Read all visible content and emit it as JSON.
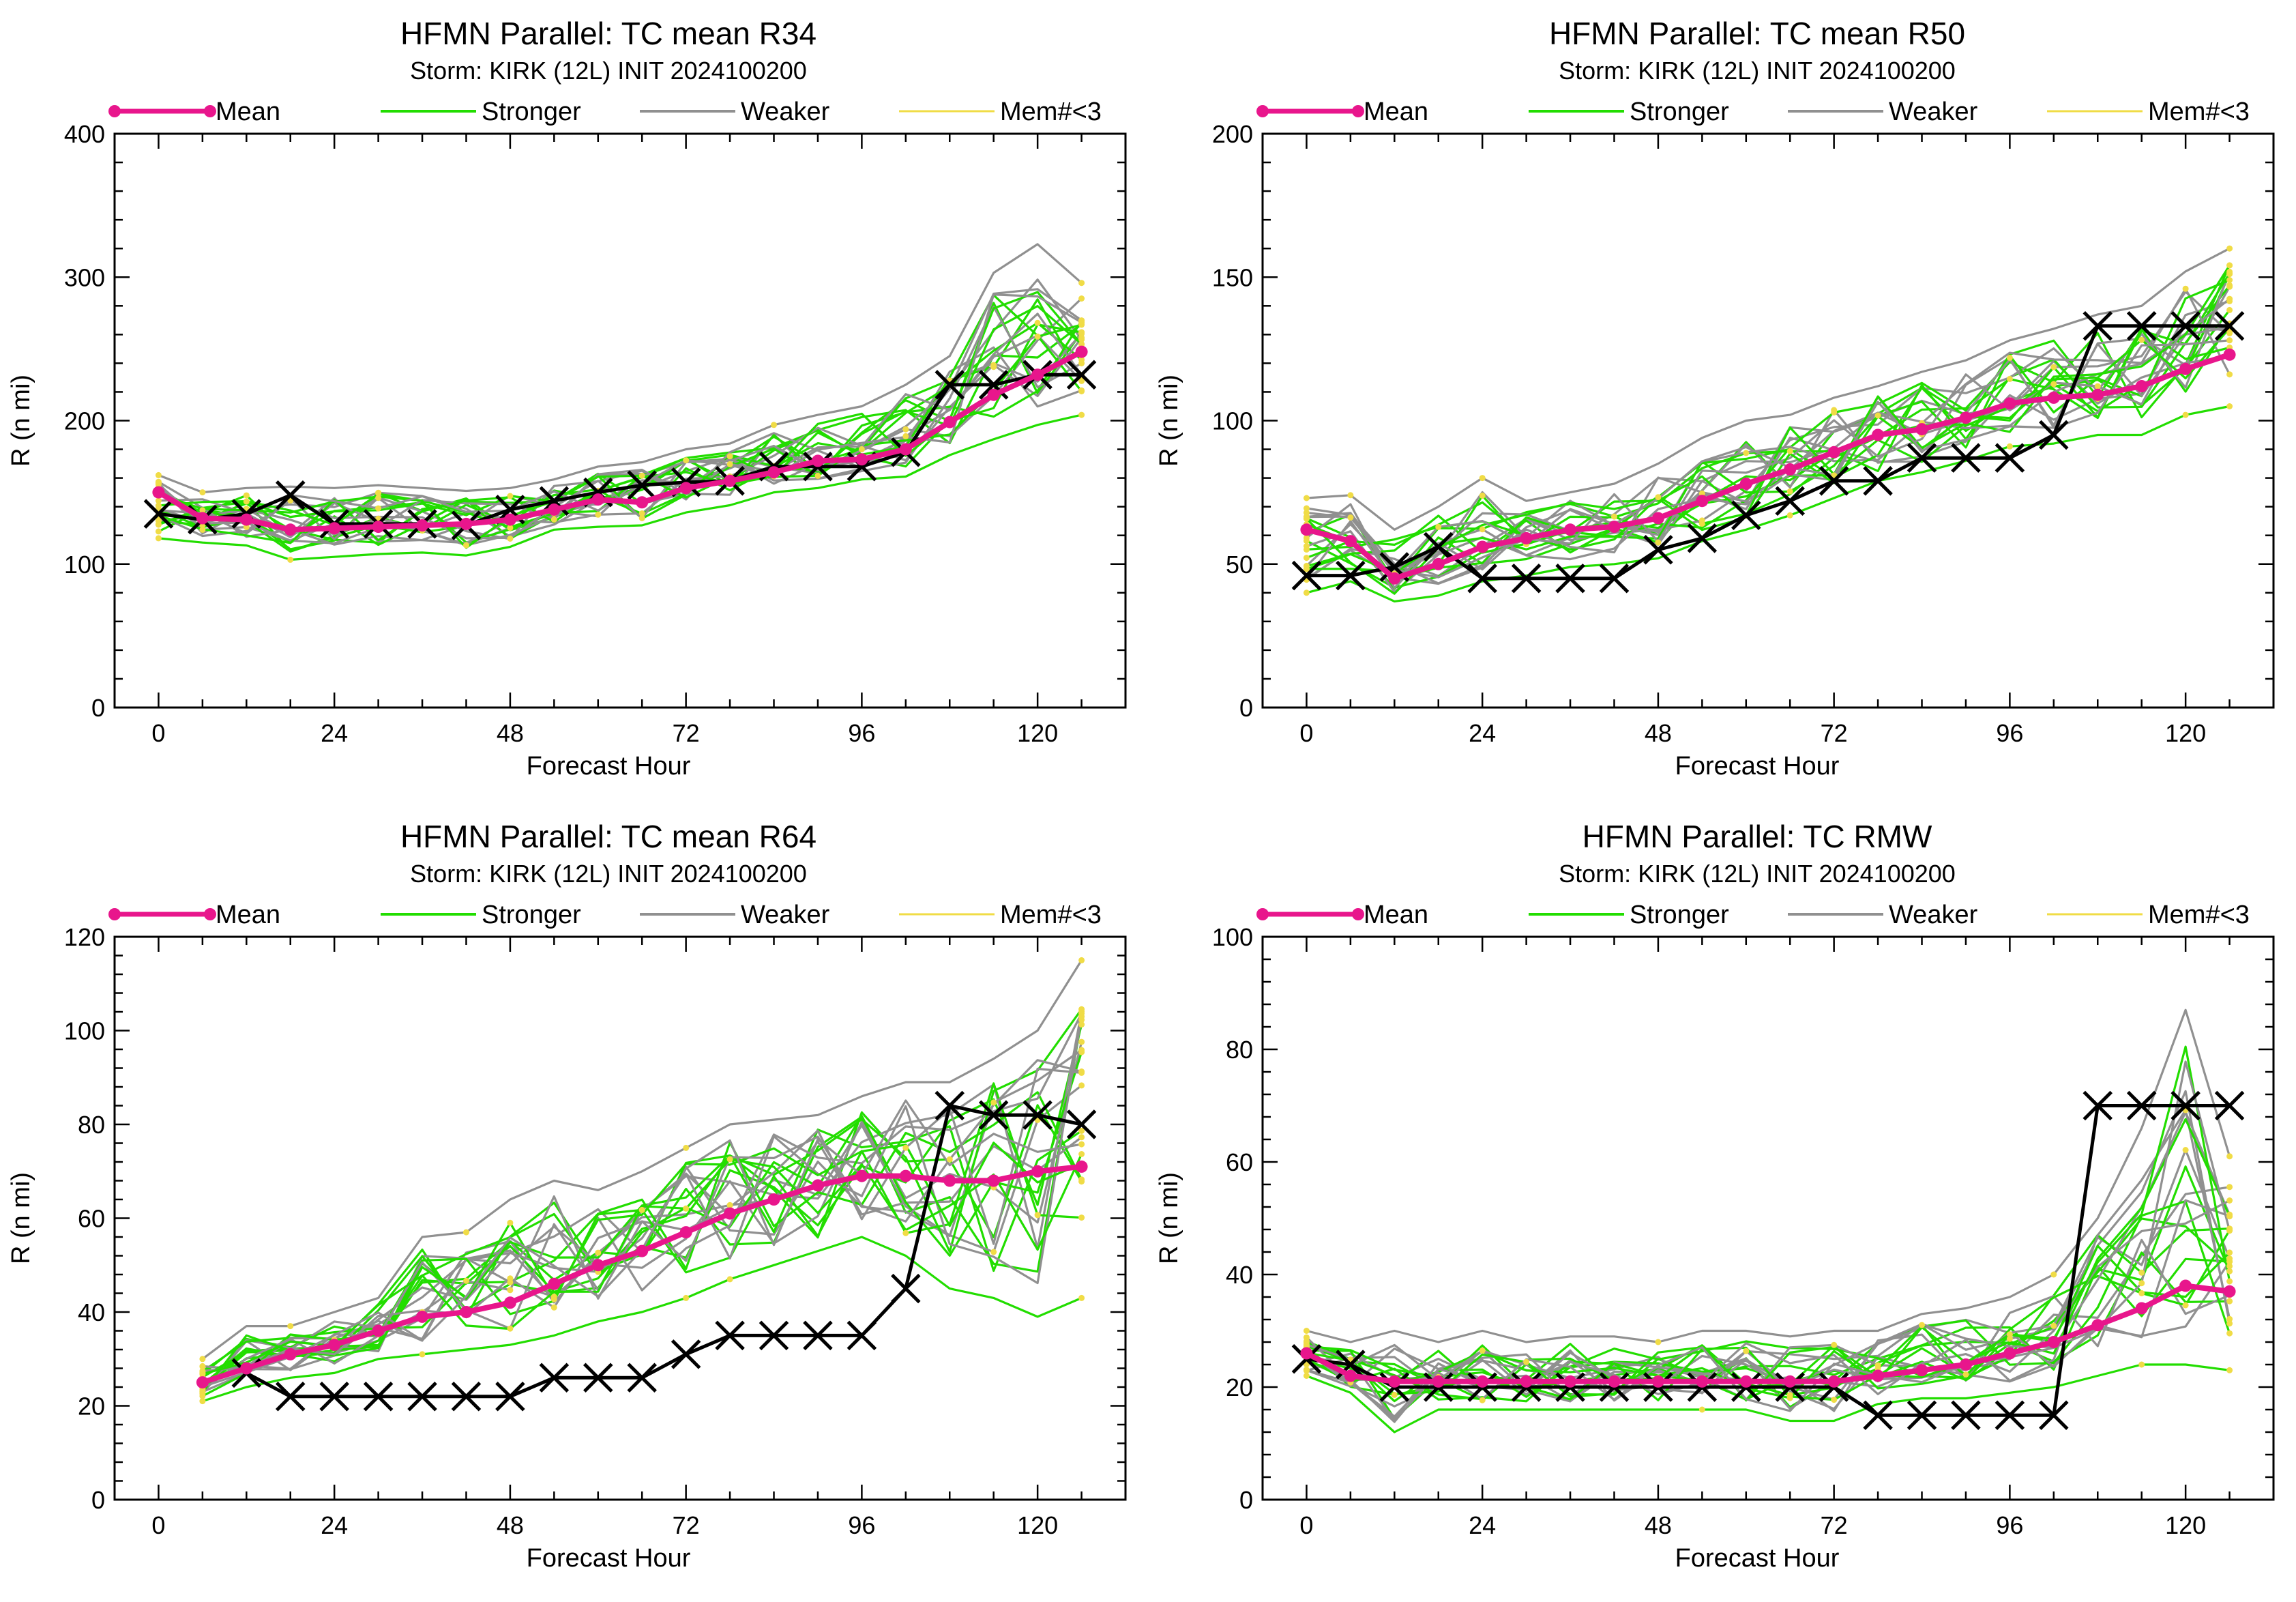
{
  "figure": {
    "legend_labels": [
      "Mean",
      "Stronger",
      "Weaker",
      "Mem#<3"
    ],
    "xlabel": "Forecast Hour",
    "ylabel": "R (n mi)",
    "subtitle": "Storm: KIRK (12L) INIT 2024100200"
  },
  "colors": {
    "mean": "#e8168c",
    "stronger": "#22dd00",
    "weaker": "#909090",
    "few_members": "#f0dc46",
    "observed": "#000000"
  },
  "chart_data": [
    {
      "type": "line",
      "title": "HFMN Parallel: TC mean R34",
      "subtitle": "Storm: KIRK (12L) INIT 2024100200",
      "xlabel": "Forecast Hour",
      "ylabel": "R (n mi)",
      "xlim": [
        -6,
        132
      ],
      "ylim": [
        0,
        400
      ],
      "xticks": [
        0,
        24,
        48,
        72,
        96,
        120
      ],
      "yticks": [
        0,
        100,
        200,
        300,
        400
      ],
      "legend": "top",
      "x": [
        0,
        6,
        12,
        18,
        24,
        30,
        36,
        42,
        48,
        54,
        60,
        66,
        72,
        78,
        84,
        90,
        96,
        102,
        108,
        114,
        120,
        126
      ],
      "series": [
        {
          "name": "Mean",
          "values": [
            150,
            132,
            131,
            124,
            125,
            126,
            127,
            128,
            131,
            138,
            145,
            143,
            153,
            158,
            164,
            172,
            173,
            180,
            199,
            218,
            232,
            248
          ]
        },
        {
          "name": "",
          "values": [
            135,
            131,
            135,
            148,
            128,
            128,
            128,
            127,
            138,
            144,
            150,
            155,
            157,
            158,
            168,
            168,
            168,
            178,
            225,
            225,
            232,
            232
          ]
        }
      ],
      "member_band": {
        "low": [
          118,
          115,
          113,
          103,
          105,
          107,
          108,
          106,
          112,
          124,
          126,
          127,
          136,
          141,
          150,
          153,
          159,
          161,
          176,
          187,
          197,
          204
        ],
        "high": [
          162,
          150,
          153,
          154,
          153,
          155,
          153,
          151,
          153,
          159,
          168,
          171,
          180,
          184,
          197,
          204,
          210,
          225,
          245,
          303,
          323,
          296
        ],
        "members": 22
      }
    },
    {
      "type": "line",
      "title": "HFMN Parallel: TC mean R50",
      "subtitle": "Storm: KIRK (12L) INIT 2024100200",
      "xlabel": "Forecast Hour",
      "ylabel": "R (n mi)",
      "xlim": [
        -6,
        132
      ],
      "ylim": [
        0,
        200
      ],
      "xticks": [
        0,
        24,
        48,
        72,
        96,
        120
      ],
      "yticks": [
        0,
        50,
        100,
        150,
        200
      ],
      "legend": "top",
      "x": [
        0,
        6,
        12,
        18,
        24,
        30,
        36,
        42,
        48,
        54,
        60,
        66,
        72,
        78,
        84,
        90,
        96,
        102,
        108,
        114,
        120,
        126
      ],
      "series": [
        {
          "name": "Mean",
          "values": [
            62,
            58,
            45,
            50,
            56,
            59,
            62,
            63,
            66,
            72,
            78,
            83,
            89,
            95,
            97,
            101,
            106,
            108,
            109,
            112,
            118,
            123
          ]
        },
        {
          "name": "",
          "values": [
            46,
            46,
            49,
            56,
            45,
            45,
            45,
            45,
            55,
            59,
            67,
            72,
            79,
            79,
            87,
            87,
            87,
            95,
            133,
            133,
            133,
            133
          ]
        }
      ],
      "member_band": {
        "low": [
          40,
          44,
          37,
          39,
          44,
          46,
          49,
          50,
          52,
          58,
          62,
          67,
          73,
          79,
          82,
          86,
          91,
          92,
          95,
          95,
          102,
          105
        ],
        "high": [
          73,
          74,
          62,
          70,
          80,
          72,
          75,
          78,
          85,
          94,
          100,
          102,
          108,
          112,
          117,
          121,
          128,
          132,
          137,
          140,
          152,
          160
        ],
        "members": 22
      }
    },
    {
      "type": "line",
      "title": "HFMN Parallel: TC mean R64",
      "subtitle": "Storm: KIRK (12L) INIT 2024100200",
      "xlabel": "Forecast Hour",
      "ylabel": "R (n mi)",
      "xlim": [
        -6,
        132
      ],
      "ylim": [
        0,
        120
      ],
      "xticks": [
        0,
        24,
        48,
        72,
        96,
        120
      ],
      "yticks": [
        0,
        20,
        40,
        60,
        80,
        100,
        120
      ],
      "legend": "top",
      "x": [
        6,
        12,
        18,
        24,
        30,
        36,
        42,
        48,
        54,
        60,
        66,
        72,
        78,
        84,
        90,
        96,
        102,
        108,
        114,
        120,
        126
      ],
      "series": [
        {
          "name": "Mean",
          "values": [
            25,
            28,
            31,
            33,
            36,
            39,
            40,
            42,
            46,
            50,
            53,
            57,
            61,
            64,
            67,
            69,
            69,
            68,
            68,
            70,
            71
          ]
        },
        {
          "name": "",
          "values": [
            null,
            27,
            22,
            22,
            22,
            22,
            22,
            22,
            26,
            26,
            26,
            31,
            35,
            35,
            35,
            35,
            45,
            84,
            82,
            82,
            80
          ]
        }
      ],
      "member_band": {
        "low": [
          21,
          24,
          26,
          27,
          30,
          31,
          32,
          33,
          35,
          38,
          40,
          43,
          47,
          50,
          53,
          56,
          52,
          45,
          43,
          39,
          43
        ],
        "high": [
          30,
          37,
          37,
          40,
          43,
          56,
          57,
          64,
          68,
          66,
          70,
          75,
          80,
          81,
          82,
          86,
          89,
          89,
          94,
          100,
          115
        ],
        "members": 22
      }
    },
    {
      "type": "line",
      "title": "HFMN Parallel: TC RMW",
      "subtitle": "Storm: KIRK (12L) INIT 2024100200",
      "xlabel": "Forecast Hour",
      "ylabel": "R (n mi)",
      "xlim": [
        -6,
        132
      ],
      "ylim": [
        0,
        100
      ],
      "xticks": [
        0,
        24,
        48,
        72,
        96,
        120
      ],
      "yticks": [
        0,
        20,
        40,
        60,
        80,
        100
      ],
      "legend": "top",
      "x": [
        0,
        6,
        12,
        18,
        24,
        30,
        36,
        42,
        48,
        54,
        60,
        66,
        72,
        78,
        84,
        90,
        96,
        102,
        108,
        114,
        120,
        126
      ],
      "series": [
        {
          "name": "Mean",
          "values": [
            26,
            22,
            21,
            21,
            21,
            21,
            21,
            21,
            21,
            21,
            21,
            21,
            21,
            22,
            23,
            24,
            26,
            28,
            31,
            34,
            38,
            37
          ]
        },
        {
          "name": "",
          "values": [
            25,
            24,
            20,
            20,
            20,
            20,
            20,
            20,
            20,
            20,
            20,
            20,
            20,
            15,
            15,
            15,
            15,
            15,
            70,
            70,
            70,
            70
          ]
        }
      ],
      "member_band": {
        "low": [
          22,
          19,
          12,
          16,
          16,
          16,
          16,
          16,
          16,
          16,
          16,
          14,
          14,
          17,
          18,
          18,
          19,
          20,
          22,
          24,
          24,
          23
        ],
        "high": [
          30,
          28,
          30,
          28,
          30,
          28,
          29,
          29,
          28,
          30,
          30,
          29,
          30,
          30,
          33,
          34,
          36,
          40,
          50,
          66,
          87,
          61
        ],
        "members": 22
      }
    }
  ]
}
